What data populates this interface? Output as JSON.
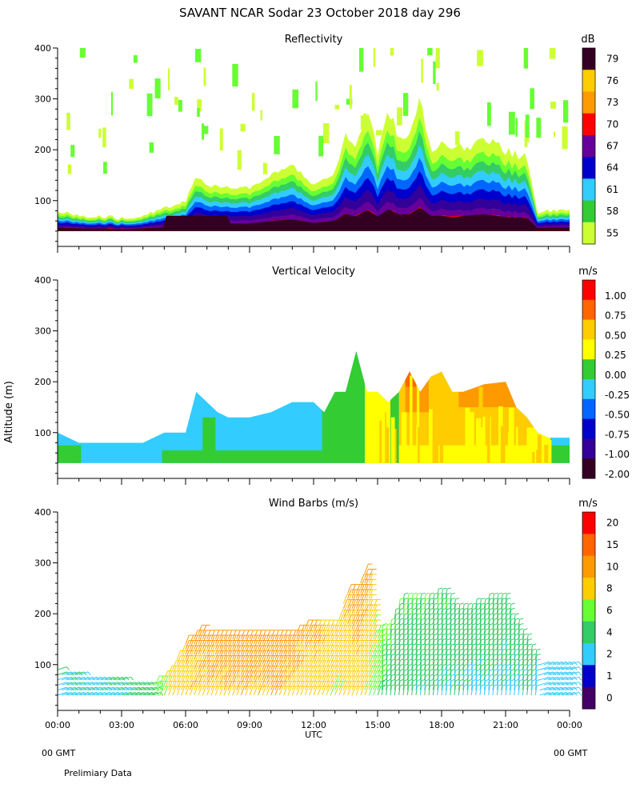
{
  "figure": {
    "title": "SAVANT   NCAR Sodar   23 October 2018   day 296",
    "y_axis_label": "Altitude (m)",
    "x_axis_label": "UTC",
    "left_footer": "00 GMT",
    "right_footer": "00 GMT",
    "note": "Prelimiary Data"
  },
  "colors": {
    "reflectivity": [
      "#ccff33",
      "#66ff33",
      "#33cc66",
      "#33ccff",
      "#0066ff",
      "#0000cc",
      "#330099",
      "#660099",
      "#ff0000",
      "#ff6600",
      "#ff9900",
      "#ffcc00",
      "#330022"
    ],
    "velocity": [
      "#330022",
      "#330099",
      "#0000cc",
      "#0066ff",
      "#33ccff",
      "#33cc33",
      "#ffff00",
      "#ffcc00",
      "#ff9900",
      "#ff6600",
      "#ff0000"
    ],
    "wind": [
      "#440066",
      "#0000cc",
      "#33ccff",
      "#33cc66",
      "#66ff33",
      "#ffcc00",
      "#ff9900",
      "#ff6600",
      "#ff0000"
    ]
  },
  "chart_data": [
    {
      "type": "heatmap",
      "title": "Reflectivity",
      "units": "dB",
      "xlabel": "UTC",
      "ylabel": "Altitude (m)",
      "xlim": [
        0,
        24
      ],
      "ylim": [
        10,
        400
      ],
      "x_ticks": [
        "00:00",
        "03:00",
        "06:00",
        "09:00",
        "12:00",
        "15:00",
        "18:00",
        "21:00",
        "00:00"
      ],
      "y_ticks": [
        "100",
        "200",
        "300",
        "400"
      ],
      "colorbar_labels": [
        "55",
        "58",
        "61",
        "64",
        "67",
        "70",
        "73",
        "76",
        "79"
      ],
      "profile_times": [
        0,
        1,
        2,
        3,
        4,
        5,
        5.5,
        6,
        6.5,
        7,
        8,
        9,
        10,
        11,
        12,
        13,
        13.5,
        14,
        14.5,
        15,
        15.5,
        16,
        16.5,
        17,
        17.5,
        18,
        18.5,
        19,
        20,
        21,
        22,
        22.5,
        23,
        24
      ],
      "profile_heights": [
        80,
        70,
        70,
        65,
        70,
        85,
        90,
        100,
        150,
        130,
        125,
        125,
        150,
        170,
        130,
        155,
        230,
        200,
        275,
        200,
        280,
        220,
        225,
        300,
        205,
        210,
        190,
        205,
        225,
        195,
        185,
        75,
        80,
        80
      ],
      "thresholds_below_top": [
        0,
        0.15,
        0.25,
        0.35,
        0.45,
        0.55,
        0.65,
        0.75,
        0.82,
        0.88,
        0.92,
        0.96
      ]
    },
    {
      "type": "heatmap",
      "title": "Vertical Velocity",
      "units": "m/s",
      "xlabel": "UTC",
      "ylabel": "Altitude (m)",
      "xlim": [
        0,
        24
      ],
      "ylim": [
        10,
        400
      ],
      "x_ticks": [
        "00:00",
        "03:00",
        "06:00",
        "09:00",
        "12:00",
        "15:00",
        "18:00",
        "21:00",
        "00:00"
      ],
      "y_ticks": [
        "100",
        "200",
        "300",
        "400"
      ],
      "colorbar_labels": [
        "1.00",
        "0.75",
        "0.50",
        "0.25",
        "0.00",
        "-0.25",
        "-0.50",
        "-0.75",
        "-1.00",
        "-2.00"
      ],
      "profile_times": [
        0,
        1,
        2,
        3,
        4,
        5,
        6,
        6.5,
        7,
        7.5,
        8,
        9,
        10,
        11,
        12,
        12.5,
        13,
        13.5,
        14,
        14.5,
        15,
        15.5,
        16,
        16.5,
        17,
        17.5,
        18,
        18.5,
        19,
        20,
        21,
        21.5,
        22,
        22.5,
        23,
        24
      ],
      "profile_heights": [
        100,
        80,
        80,
        80,
        80,
        100,
        100,
        180,
        160,
        140,
        130,
        130,
        140,
        160,
        160,
        140,
        180,
        180,
        260,
        180,
        180,
        160,
        180,
        220,
        180,
        210,
        220,
        180,
        180,
        195,
        200,
        150,
        130,
        100,
        90,
        90
      ],
      "blocks": [
        {
          "x0": 0,
          "x1": 24,
          "y0": 40,
          "y1": 400,
          "value": -0.25
        },
        {
          "x0": 0,
          "x1": 1.1,
          "y0": 40,
          "y1": 75,
          "value": 0.0
        },
        {
          "x0": 4.9,
          "x1": 6.8,
          "y0": 40,
          "y1": 65,
          "value": 0.0
        },
        {
          "x0": 6.8,
          "x1": 7.4,
          "y0": 40,
          "y1": 130,
          "value": 0.0
        },
        {
          "x0": 7.4,
          "x1": 12.4,
          "y0": 40,
          "y1": 65,
          "value": 0.0
        },
        {
          "x0": 12.4,
          "x1": 14.4,
          "y0": 40,
          "y1": 260,
          "value": 0.0
        },
        {
          "x0": 14.4,
          "x1": 15.6,
          "y0": 40,
          "y1": 400,
          "value": 0.25
        },
        {
          "x0": 15.6,
          "x1": 16.0,
          "y0": 40,
          "y1": 400,
          "value": 0.0
        },
        {
          "x0": 16.0,
          "x1": 23.1,
          "y0": 40,
          "y1": 400,
          "value": 0.5
        },
        {
          "x0": 16.0,
          "x1": 23.1,
          "y0": 40,
          "y1": 75,
          "value": 0.25
        },
        {
          "x0": 16.3,
          "x1": 17.4,
          "y0": 140,
          "y1": 400,
          "value": 0.75
        },
        {
          "x0": 18.8,
          "x1": 21.8,
          "y0": 150,
          "y1": 400,
          "value": 0.75
        },
        {
          "x0": 16.3,
          "x1": 16.8,
          "y0": 190,
          "y1": 400,
          "value": 1.0
        },
        {
          "x0": 22.0,
          "x1": 23.1,
          "y0": 40,
          "y1": 110,
          "value": 0.25
        },
        {
          "x0": 23.1,
          "x1": 24,
          "y0": 40,
          "y1": 75,
          "value": 0.0
        }
      ]
    },
    {
      "type": "scatter",
      "title": "Wind Barbs (m/s)",
      "units": "m/s",
      "xlabel": "UTC",
      "ylabel": "Altitude (m)",
      "xlim": [
        0,
        24
      ],
      "ylim": [
        10,
        400
      ],
      "x_ticks": [
        "00:00",
        "03:00",
        "06:00",
        "09:00",
        "12:00",
        "15:00",
        "18:00",
        "21:00",
        "00:00"
      ],
      "y_ticks": [
        "100",
        "200",
        "300",
        "400"
      ],
      "colorbar_labels": [
        "20",
        "15",
        "10",
        "8",
        "6",
        "4",
        "2",
        "1",
        "0"
      ],
      "barb_times": [
        0,
        1,
        2,
        3,
        4,
        5,
        6,
        6.5,
        7,
        7.5,
        8,
        9,
        10,
        11,
        12,
        13,
        13.5,
        14,
        14.5,
        15,
        15.5,
        16,
        16.5,
        17,
        17.5,
        18,
        18.5,
        19,
        20,
        21,
        22,
        22.5,
        23,
        24
      ],
      "barb_top_heights": [
        90,
        80,
        75,
        70,
        65,
        70,
        140,
        160,
        160,
        150,
        150,
        150,
        150,
        160,
        180,
        170,
        240,
        240,
        300,
        160,
        160,
        220,
        220,
        220,
        220,
        240,
        220,
        200,
        220,
        220,
        140,
        110,
        100,
        100
      ],
      "speed_times": [
        0,
        2,
        4,
        5,
        6,
        7,
        8,
        10,
        12,
        13,
        14,
        14.5,
        15,
        15.5,
        16,
        18,
        21,
        22,
        23,
        24
      ],
      "speed_values": [
        3.5,
        3.5,
        4.5,
        8,
        9.5,
        9.5,
        10,
        10,
        9,
        8,
        9,
        8,
        6,
        5,
        4.5,
        4,
        3.5,
        4,
        2.5,
        3
      ]
    }
  ]
}
